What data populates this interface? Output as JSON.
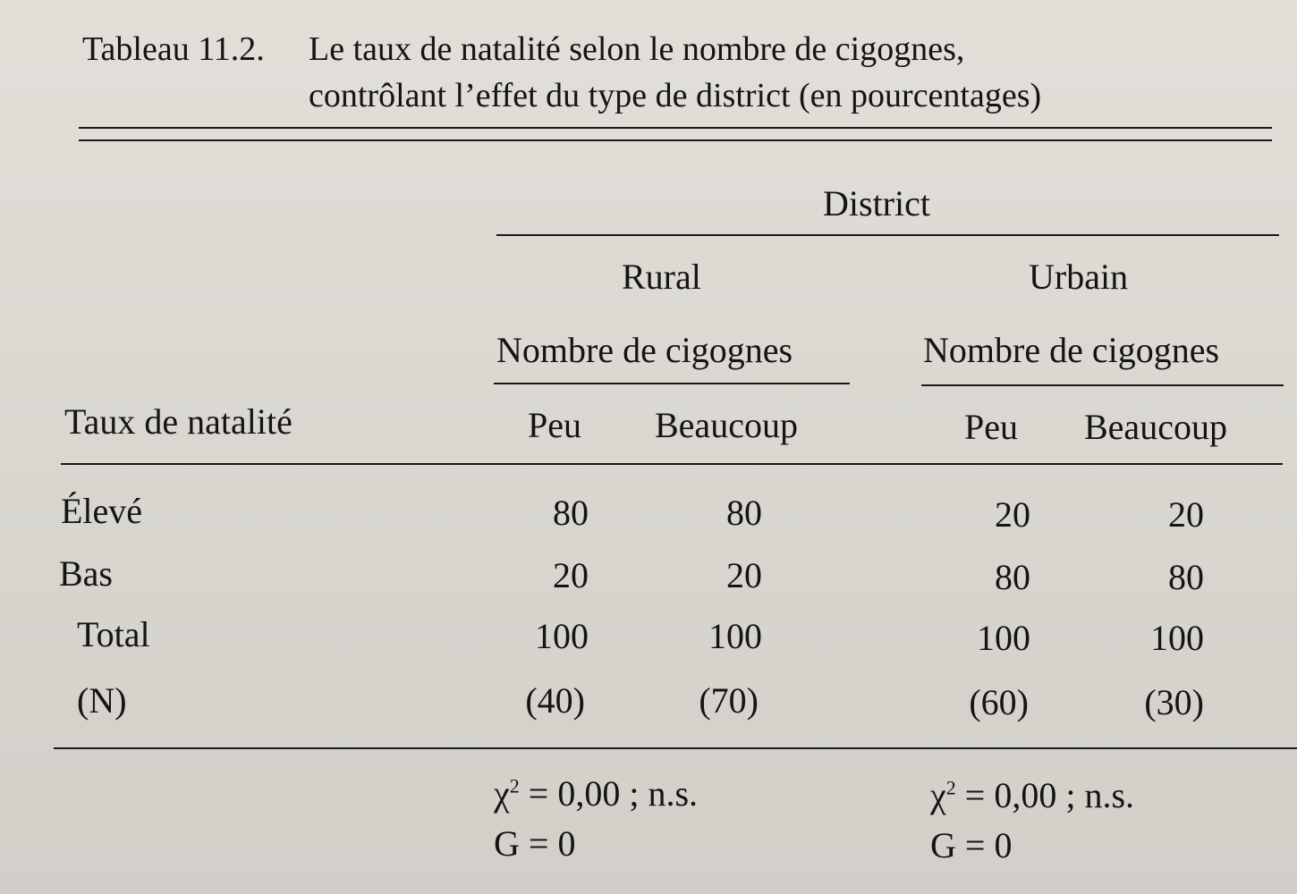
{
  "caption": {
    "label": "Tableau 11.2.",
    "line1": "Le taux de natalité selon le nombre de cigognes,",
    "line2": "contrôlant l’effet du type de district (en pourcentages)"
  },
  "header": {
    "group": "District",
    "rural": "Rural",
    "urbain": "Urbain",
    "sub_rural": "Nombre de cigognes",
    "sub_urbain": "Nombre de cigognes",
    "row_label": "Taux de natalité",
    "cols": [
      "Peu",
      "Beaucoup",
      "Peu",
      "Beaucoup"
    ]
  },
  "rows": [
    {
      "label": "Élevé",
      "values": [
        "80",
        "80",
        "20",
        "20"
      ]
    },
    {
      "label": "Bas",
      "values": [
        "20",
        "20",
        "80",
        "80"
      ]
    },
    {
      "label": "Total",
      "values": [
        "100",
        "100",
        "100",
        "100"
      ]
    },
    {
      "label": "(N)",
      "values": [
        "(40)",
        "(70)",
        "(60)",
        "(30)"
      ]
    }
  ],
  "stats": {
    "rural_chi": "= 0,00 ; n.s.",
    "rural_g": "G = 0",
    "urbain_chi": "= 0,00 ; n.s.",
    "urbain_g": "G = 0",
    "chi_symbol": "χ",
    "chi_exp": "2"
  }
}
